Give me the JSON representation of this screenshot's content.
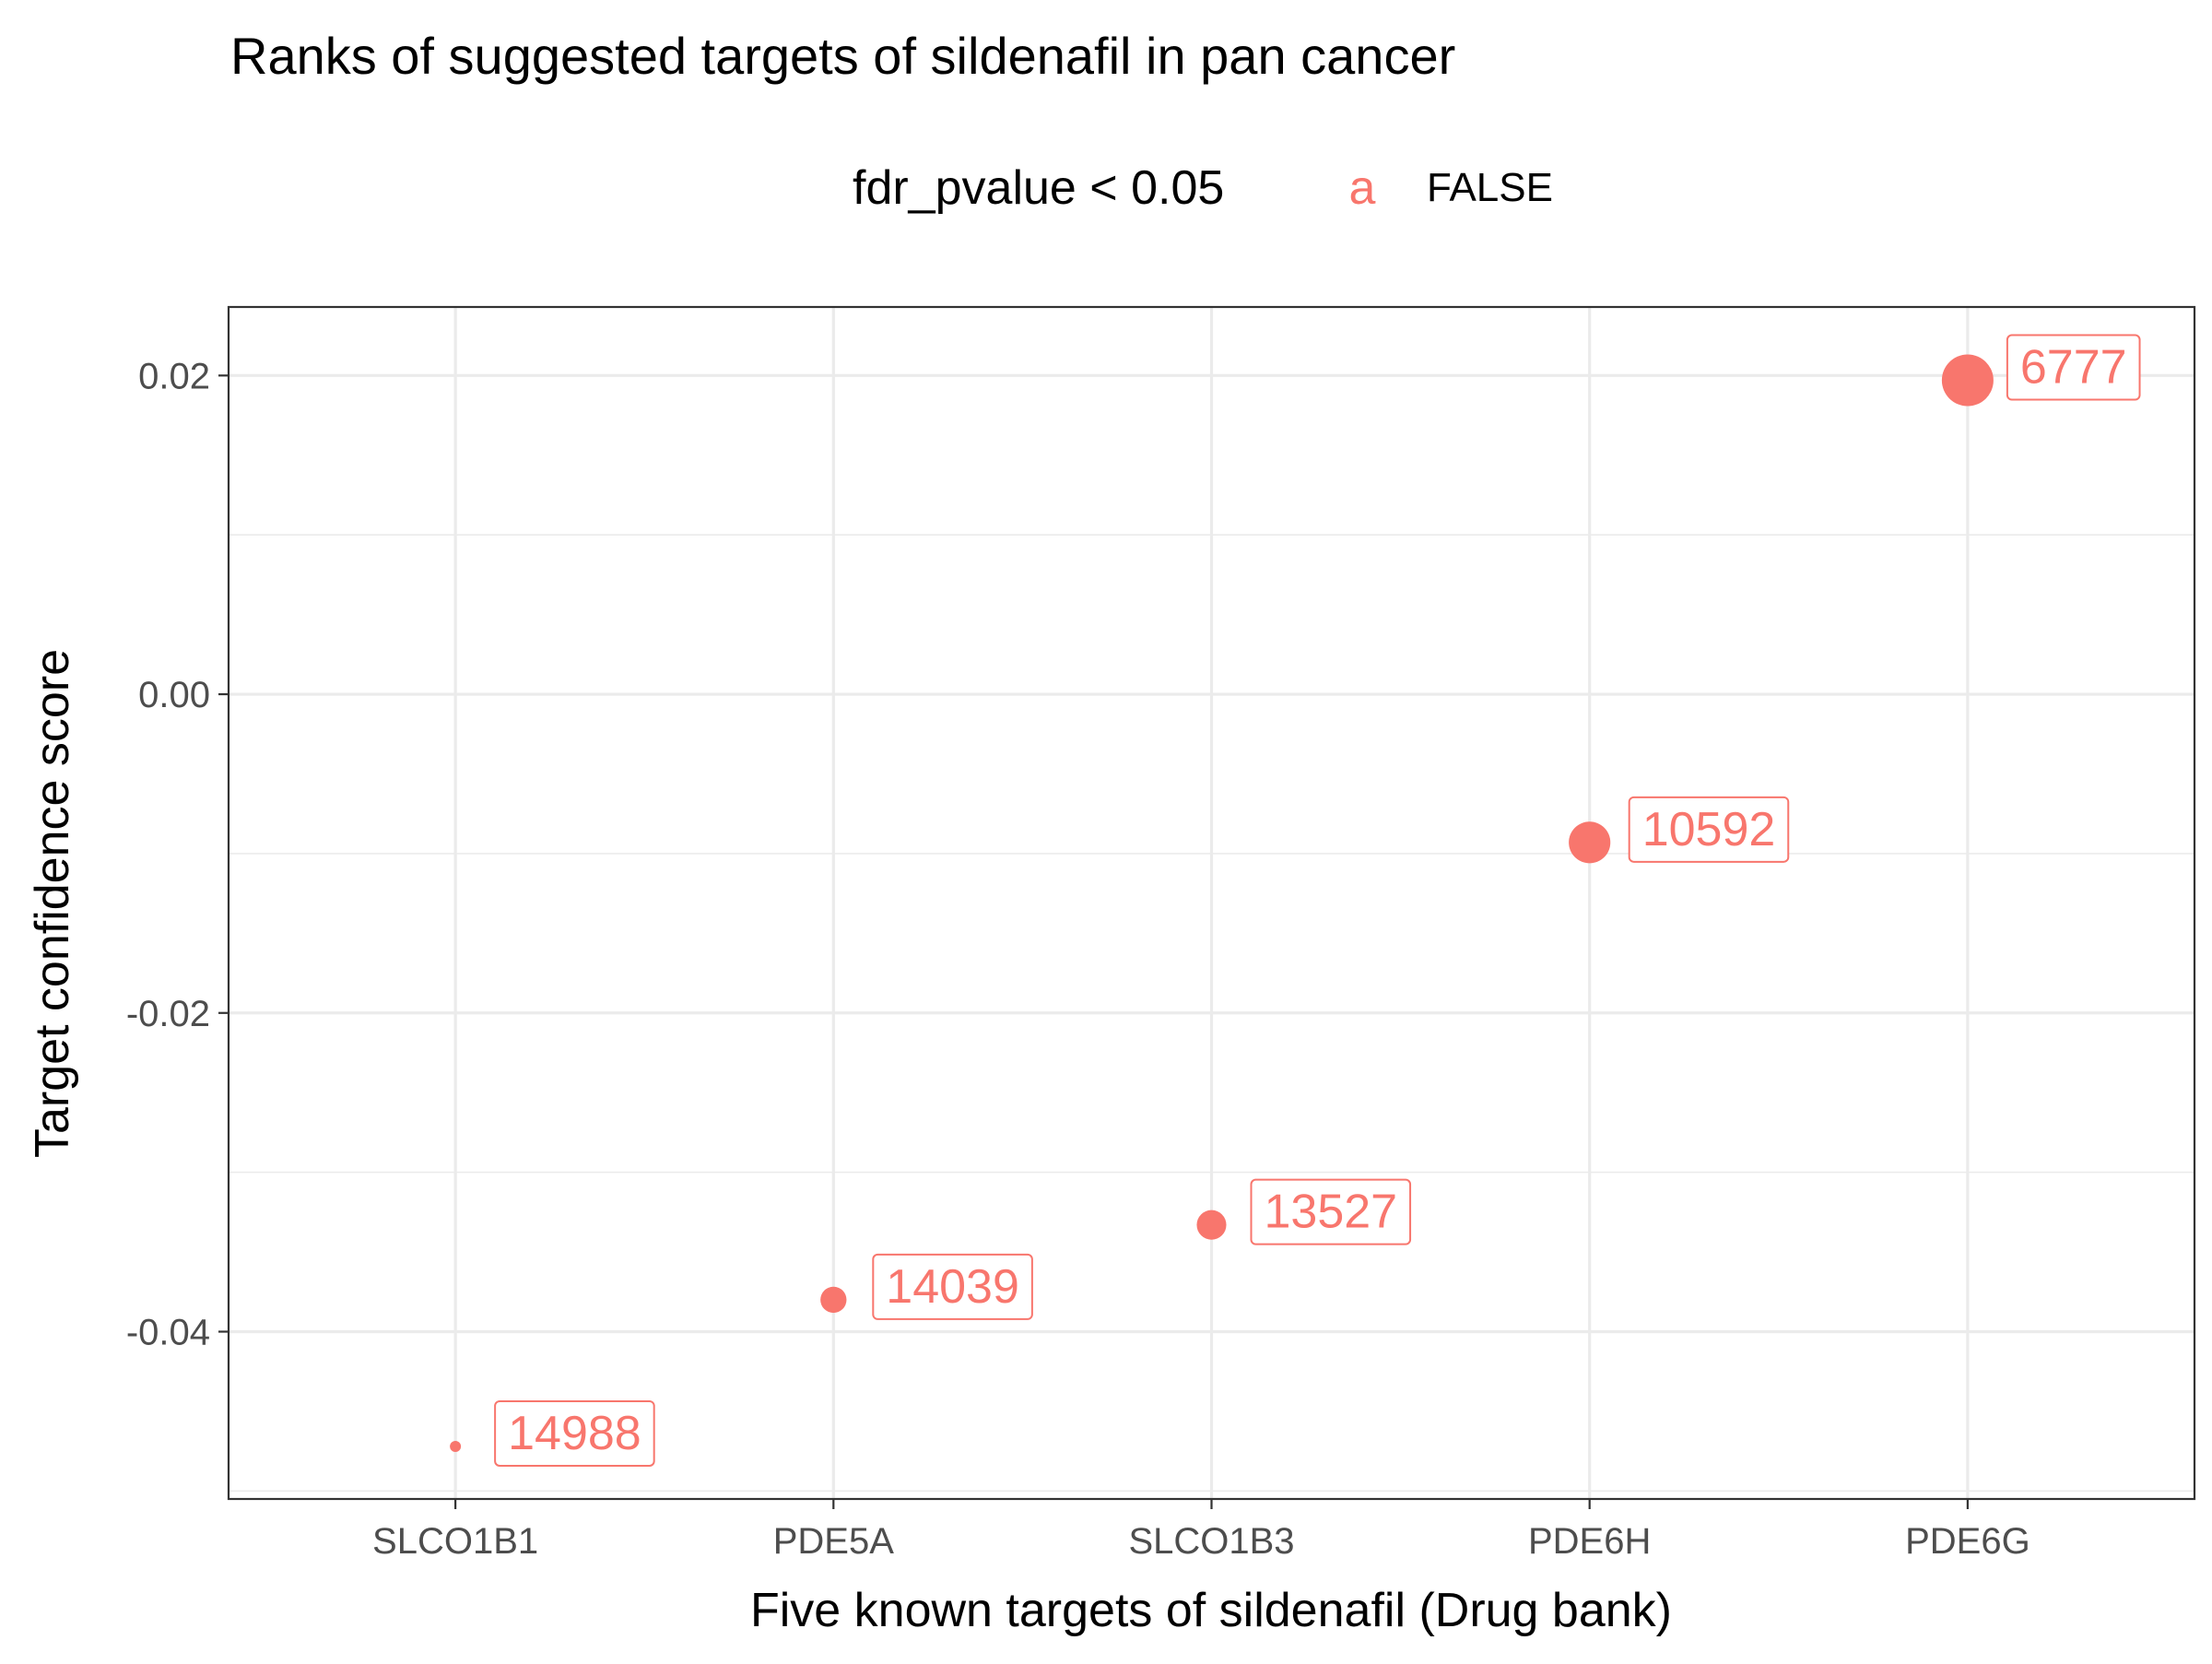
{
  "chart_data": {
    "type": "scatter",
    "title": "Ranks of suggested targets of sildenafil in pan cancer",
    "xlabel": "Five known targets of sildenafil (Drug bank)",
    "ylabel": "Target confidence score",
    "categories": [
      "SLCO1B1",
      "PDE5A",
      "SLCO1B3",
      "PDE6H",
      "PDE6G"
    ],
    "series": [
      {
        "name": "FALSE",
        "points": [
          {
            "x": "SLCO1B1",
            "y": -0.0472,
            "label": "14988"
          },
          {
            "x": "PDE5A",
            "y": -0.038,
            "label": "14039"
          },
          {
            "x": "SLCO1B3",
            "y": -0.0333,
            "label": "13527"
          },
          {
            "x": "PDE6H",
            "y": -0.0093,
            "label": "10592"
          },
          {
            "x": "PDE6G",
            "y": 0.0197,
            "label": "6777"
          }
        ]
      }
    ],
    "yticks": [
      0.02,
      0.0,
      -0.02,
      -0.04
    ],
    "ytick_labels": [
      "0.02",
      "0.00",
      "-0.02",
      "-0.04"
    ],
    "ylim": [
      -0.0505,
      0.0243
    ],
    "grid": true,
    "legend": {
      "title": "fdr_pvalue < 0.05",
      "key_glyph": "a",
      "entries": [
        "FALSE"
      ],
      "position": "top"
    },
    "colors": {
      "FALSE": "#F8766D"
    }
  }
}
